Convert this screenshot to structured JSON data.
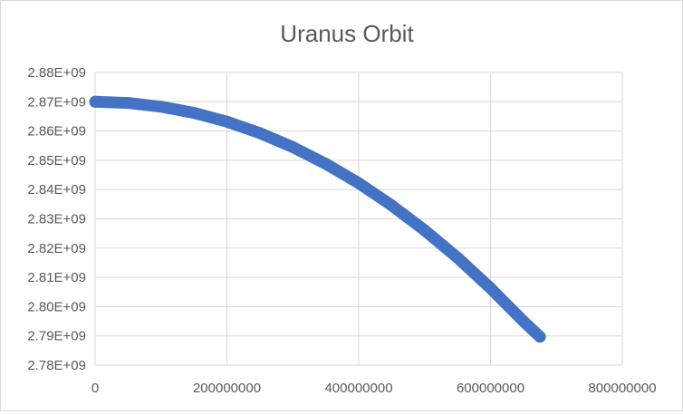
{
  "chart_data": {
    "type": "scatter",
    "title": "Uranus Orbit",
    "xlabel": "",
    "ylabel": "",
    "xlim": [
      0,
      800000000
    ],
    "ylim": [
      2780000000,
      2880000000
    ],
    "x_ticks": [
      0,
      200000000,
      400000000,
      600000000,
      800000000
    ],
    "x_tick_labels": [
      "0",
      "200000000",
      "400000000",
      "600000000",
      "800000000"
    ],
    "y_ticks": [
      2780000000,
      2790000000,
      2800000000,
      2810000000,
      2820000000,
      2830000000,
      2840000000,
      2850000000,
      2860000000,
      2870000000,
      2880000000
    ],
    "y_tick_labels": [
      "2.78E+09",
      "2.79E+09",
      "2.80E+09",
      "2.81E+09",
      "2.82E+09",
      "2.83E+09",
      "2.84E+09",
      "2.85E+09",
      "2.86E+09",
      "2.87E+09",
      "2.88E+09"
    ],
    "grid": true,
    "legend": "none",
    "series": [
      {
        "color": "#4472c4",
        "x": [
          0,
          50000000,
          100000000,
          150000000,
          200000000,
          250000000,
          300000000,
          350000000,
          400000000,
          450000000,
          500000000,
          550000000,
          600000000,
          650000000,
          675000000
        ],
        "y": [
          2870000000,
          2869600000,
          2868300000,
          2866200000,
          2863200000,
          2859300000,
          2854500000,
          2848800000,
          2842200000,
          2834600000,
          2826100000,
          2816700000,
          2806300000,
          2795000000,
          2789700000
        ]
      }
    ]
  }
}
